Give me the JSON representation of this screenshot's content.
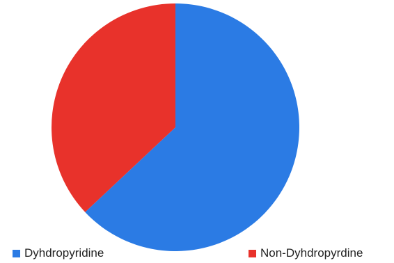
{
  "chart_data": {
    "type": "pie",
    "title": "",
    "categories": [
      "Dyhdropyridine",
      "Non-Dyhdropyrdine"
    ],
    "values": [
      63,
      37
    ],
    "colors": [
      "#2B7BE4",
      "#E8322B"
    ],
    "start_angle_deg": 0,
    "direction": "clockwise",
    "legend_position": "bottom"
  }
}
